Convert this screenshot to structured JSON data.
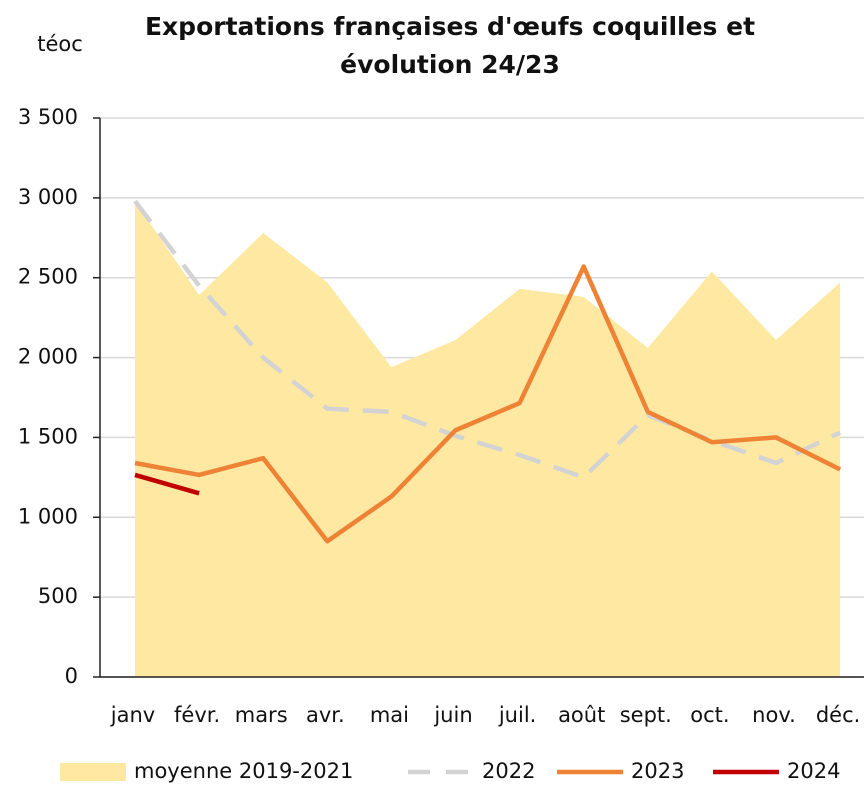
{
  "chart_data": {
    "type": "line",
    "title": "Exportations françaises d'œufs coquilles et évolution 24/23",
    "y_label": "téoc",
    "categories": [
      "janv",
      "févr.",
      "mars",
      "avr.",
      "mai",
      "juin",
      "juil.",
      "août",
      "sept.",
      "oct.",
      "nov.",
      "déc."
    ],
    "ylim": [
      0,
      3500
    ],
    "yticks": [
      0,
      500,
      {
        "value": 1000,
        "label": "1 000"
      },
      {
        "value": 1500,
        "label": "1 500"
      },
      {
        "value": 2000,
        "label": "2 000"
      },
      {
        "value": 2500,
        "label": "2 500"
      },
      {
        "value": 3000,
        "label": "3 000"
      },
      {
        "value": 3500,
        "label": "3 500"
      }
    ],
    "grid": true,
    "legend": "bottom",
    "series": [
      {
        "name": "moyenne 2019-2021",
        "color": "#fee8a2",
        "style": "area",
        "values": [
          2980,
          2390,
          2780,
          2470,
          1940,
          2110,
          2430,
          2380,
          2060,
          2540,
          2110,
          2470
        ]
      },
      {
        "name": "2022",
        "color": "#d3d3d3",
        "style": "dashed",
        "values": [
          2980,
          2450,
          2000,
          1680,
          1660,
          1510,
          1390,
          1250,
          1640,
          1480,
          1340,
          1530
        ]
      },
      {
        "name": "2023",
        "color": "#ee8336",
        "style": "solid",
        "values": [
          1340,
          1265,
          1370,
          850,
          1130,
          1545,
          1715,
          2570,
          1660,
          1470,
          1500,
          1300
        ]
      },
      {
        "name": "2024",
        "color": "#c00000",
        "style": "solid",
        "values": [
          1265,
          1150,
          null,
          null,
          null,
          null,
          null,
          null,
          null,
          null,
          null,
          null
        ]
      }
    ]
  }
}
